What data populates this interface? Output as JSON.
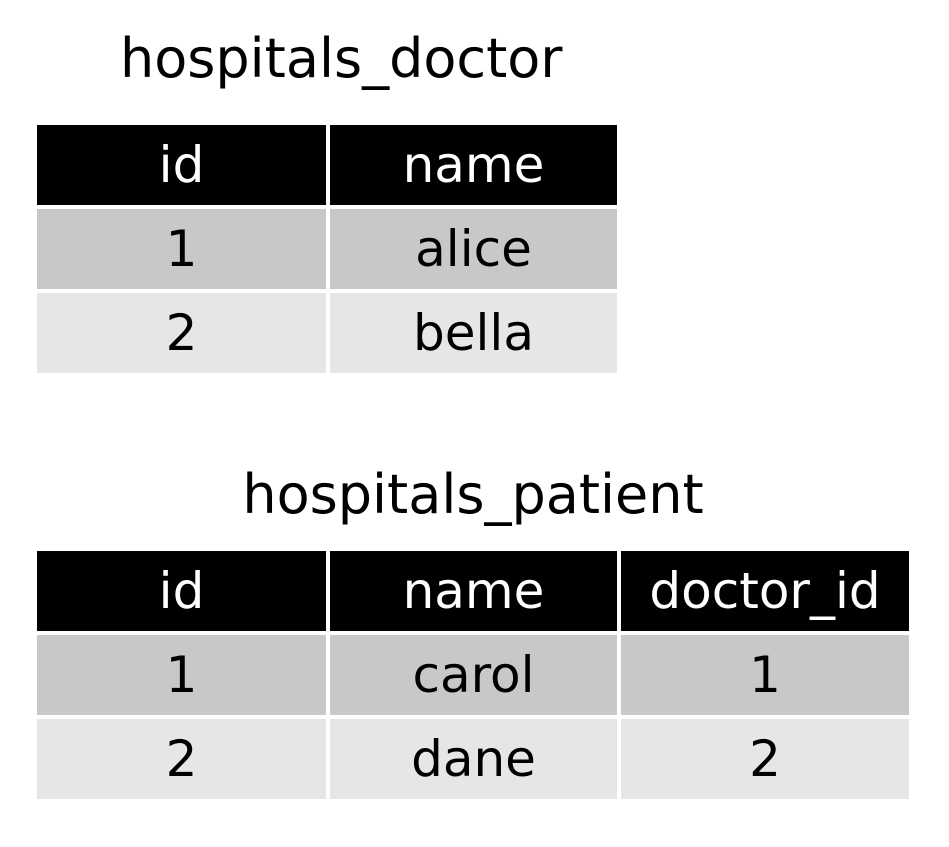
{
  "doctor_table": {
    "title": "hospitals_doctor",
    "headers": [
      "id",
      "name"
    ],
    "rows": [
      [
        "1",
        "alice"
      ],
      [
        "2",
        "bella"
      ]
    ]
  },
  "patient_table": {
    "title": "hospitals_patient",
    "headers": [
      "id",
      "name",
      "doctor_id"
    ],
    "rows": [
      [
        "1",
        "carol",
        "1"
      ],
      [
        "2",
        "dane",
        "2"
      ]
    ]
  },
  "colors": {
    "header_bg": "#000000",
    "header_text": "#ffffff",
    "row_odd_bg": "#c8c8c8",
    "row_even_bg": "#e6e6e6"
  }
}
